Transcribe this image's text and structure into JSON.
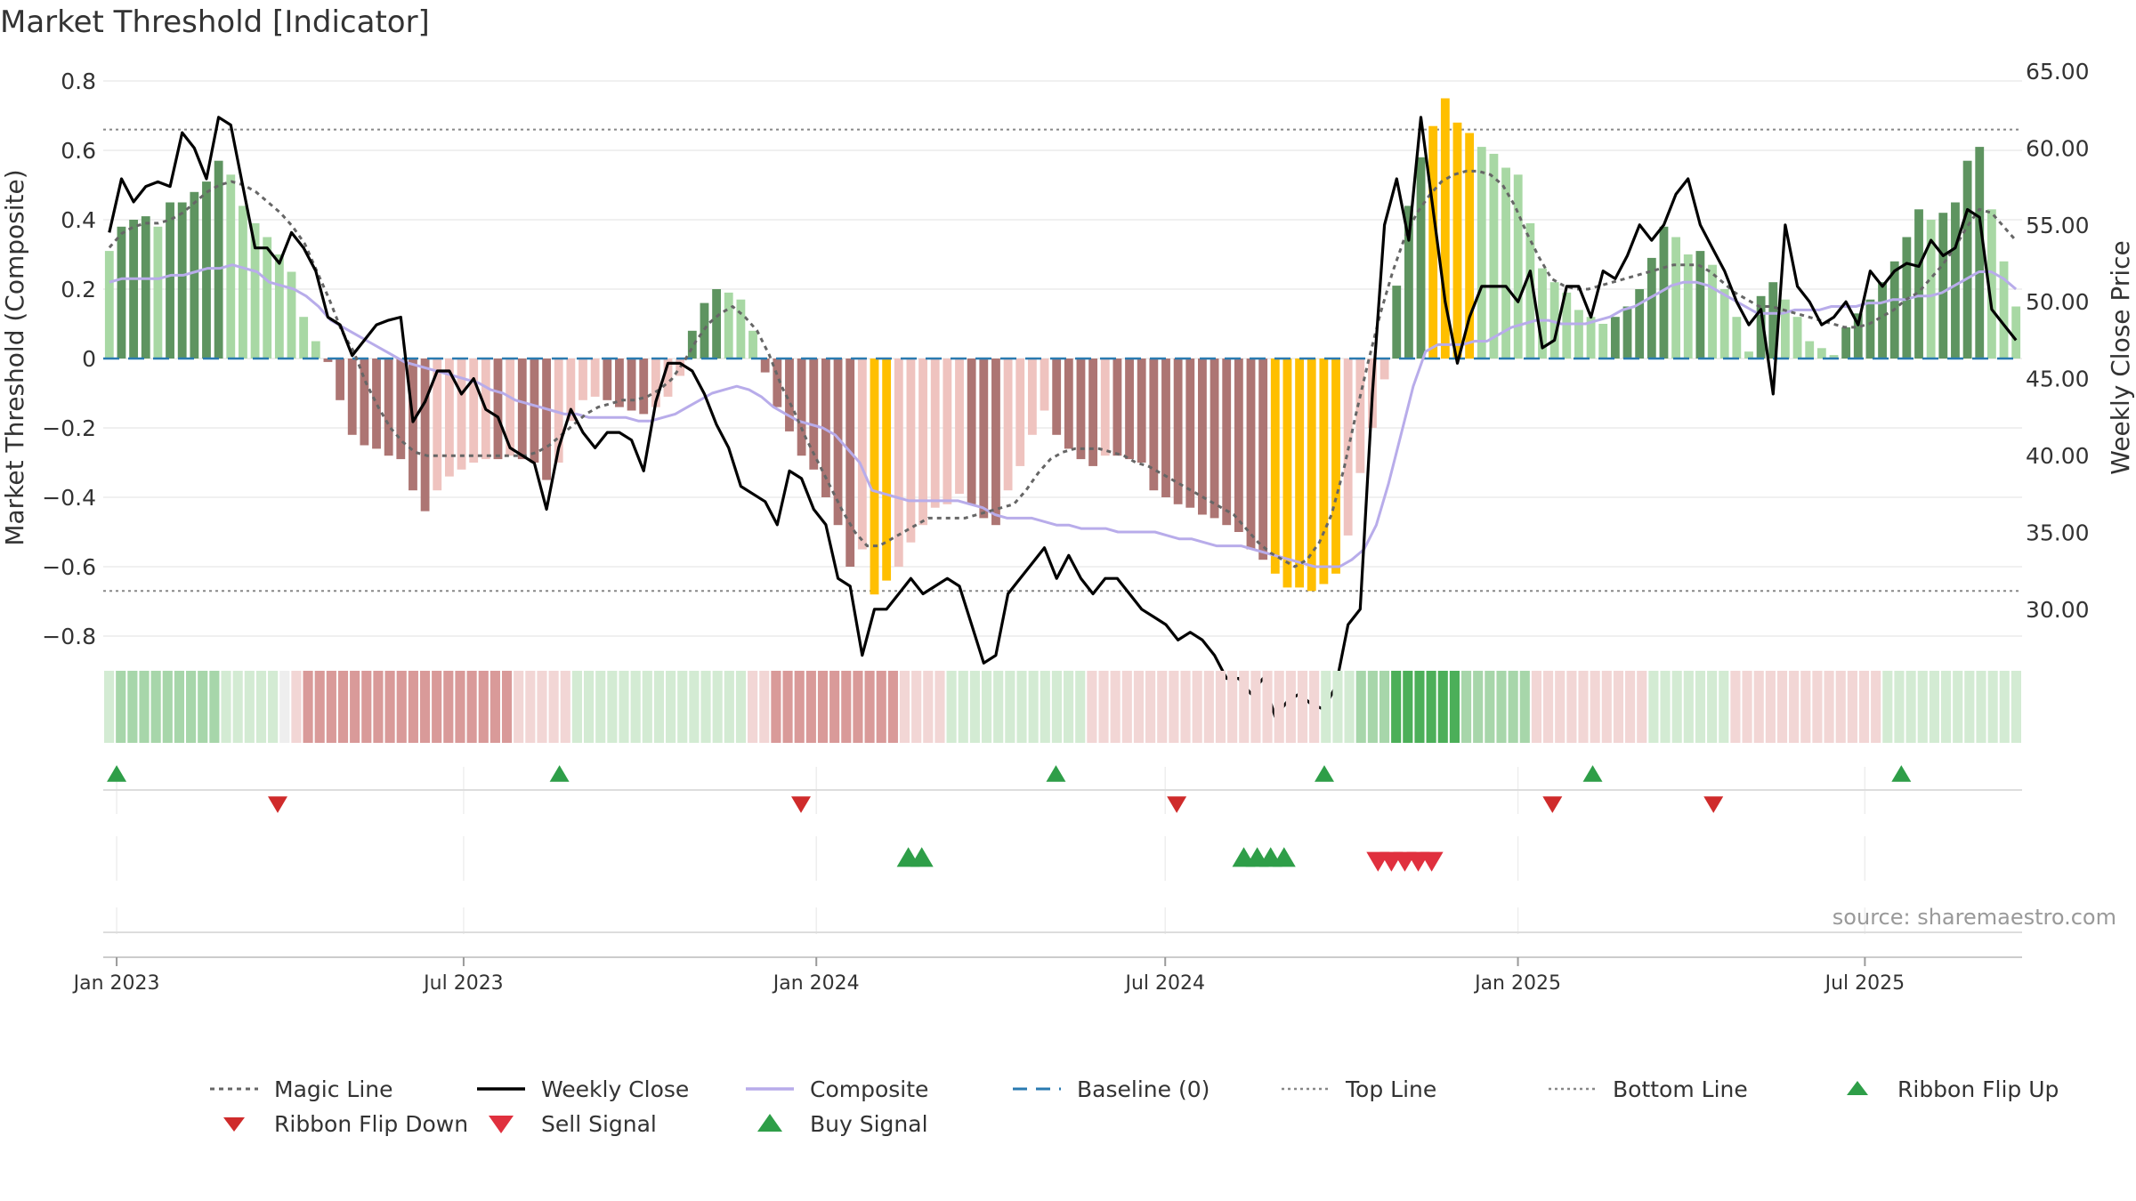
{
  "page": {
    "title": "Market Threshold [Indicator]",
    "source": "source: sharemaestro.com"
  },
  "colors": {
    "bar_green_dark": "#5e9460",
    "bar_green_light": "#a8d8a4",
    "bar_red_dark": "#ad7573",
    "bar_red_light": "#efc3bf",
    "bar_extreme": "#ffbf00",
    "close": "#000000",
    "composite": "#b8acea",
    "magic": "#666666",
    "baseline": "#2a7ab0",
    "threshold": "#888888",
    "flip_up": "#2e9e48",
    "flip_down": "#cf2b2b",
    "sell": "#e0303e",
    "buy": "#2e9e48"
  },
  "chart_data": {
    "type": "bar",
    "y_left_label": "Market Threshold (Composite)",
    "y_right_label": "Weekly Close Price",
    "y_left_ticks": [
      "0.8",
      "0.6",
      "0.4",
      "0.2",
      "0",
      "−0.2",
      "−0.4",
      "−0.6",
      "−0.8"
    ],
    "y_left_values": [
      0.8,
      0.6,
      0.4,
      0.2,
      0,
      -0.2,
      -0.4,
      -0.6,
      -0.8
    ],
    "y_right_ticks": [
      "65.00",
      "60.00",
      "55.00",
      "50.00",
      "45.00",
      "40.00",
      "35.00",
      "30.00"
    ],
    "y_right_values": [
      65,
      60,
      55,
      50,
      45,
      40,
      35,
      30
    ],
    "ylim_left": [
      -0.8,
      0.8
    ],
    "ylim_right": [
      30,
      65
    ],
    "x_ticks": [
      "Jan 2023",
      "Jul 2023",
      "Jan 2024",
      "Jul 2024",
      "Jan 2025",
      "Jul 2025"
    ],
    "x_tick_dates": [
      "2023-01-01",
      "2023-07-01",
      "2024-01-01",
      "2024-07-01",
      "2025-01-01",
      "2025-07-01"
    ],
    "x_start": "2022-12-25",
    "x_end": "2025-09-21",
    "top_line": 0.66,
    "bottom_line": -0.67,
    "baseline": 0,
    "weeks": 143,
    "composite_bars": [
      0.31,
      0.38,
      0.4,
      0.41,
      0.38,
      0.45,
      0.45,
      0.48,
      0.51,
      0.57,
      0.53,
      0.44,
      0.39,
      0.35,
      0.3,
      0.25,
      0.12,
      0.05,
      -0.01,
      -0.12,
      -0.22,
      -0.25,
      -0.26,
      -0.28,
      -0.29,
      -0.38,
      -0.44,
      -0.38,
      -0.34,
      -0.32,
      -0.3,
      -0.29,
      -0.29,
      -0.28,
      -0.29,
      -0.3,
      -0.35,
      -0.3,
      -0.18,
      -0.12,
      -0.11,
      -0.12,
      -0.14,
      -0.15,
      -0.16,
      -0.14,
      -0.11,
      -0.05,
      0.08,
      0.16,
      0.2,
      0.19,
      0.17,
      0.08,
      -0.04,
      -0.14,
      -0.21,
      -0.28,
      -0.32,
      -0.4,
      -0.48,
      -0.6,
      -0.55,
      -0.68,
      -0.64,
      -0.6,
      -0.53,
      -0.48,
      -0.43,
      -0.42,
      -0.39,
      -0.42,
      -0.46,
      -0.48,
      -0.38,
      -0.31,
      -0.22,
      -0.15,
      -0.22,
      -0.26,
      -0.29,
      -0.31,
      -0.28,
      -0.28,
      -0.29,
      -0.3,
      -0.38,
      -0.4,
      -0.42,
      -0.43,
      -0.45,
      -0.46,
      -0.48,
      -0.5,
      -0.55,
      -0.58,
      -0.62,
      -0.66,
      -0.66,
      -0.67,
      -0.65,
      -0.62,
      -0.51,
      -0.33,
      -0.2,
      -0.06,
      0.21,
      0.44,
      0.58,
      0.67,
      0.75,
      0.68,
      0.65,
      0.61,
      0.59,
      0.55,
      0.53,
      0.39,
      0.26,
      0.22,
      0.19,
      0.14,
      0.12,
      0.1,
      0.12,
      0.15,
      0.2,
      0.29,
      0.38,
      0.35,
      0.3,
      0.31,
      0.27,
      0.2,
      0.12,
      0.02,
      0.18,
      0.22,
      0.17,
      0.12,
      0.05,
      0.03,
      0.01
    ],
    "composite_bars_tail": [
      0.09,
      0.13,
      0.17,
      0.22,
      0.28,
      0.35,
      0.43,
      0.4,
      0.42,
      0.45,
      0.57,
      0.61,
      0.43,
      0.28,
      0.15
    ],
    "weekly_close": [
      54.5,
      58,
      56.5,
      57.5,
      57.8,
      57.5,
      61,
      60,
      58,
      62,
      61.5,
      57.5,
      53.5,
      53.5,
      52.5,
      54.5,
      53.5,
      52,
      49,
      48.5,
      46.5,
      47.5,
      48.5,
      48.8,
      49,
      42.2,
      43.5,
      45.5,
      45.5,
      44,
      45,
      43,
      42.5,
      40.5,
      40,
      39.5,
      36.5,
      40.5,
      43,
      41.5,
      40.5,
      41.5,
      41.5,
      41,
      39,
      43.5,
      46,
      46,
      45.5,
      44,
      42,
      40.5,
      38,
      37.5,
      37,
      35.5,
      39,
      38.5,
      36.5,
      35.5,
      32,
      31.5,
      27,
      30,
      30,
      31,
      32,
      31,
      31.5,
      32,
      31.5,
      29,
      26.5,
      27,
      31,
      32,
      33,
      34,
      32,
      33.5,
      32,
      31,
      32,
      32,
      31,
      30,
      29.5,
      29,
      28,
      28.5,
      28,
      27,
      25.5,
      25.5,
      24.5,
      25.5,
      23,
      24,
      24.5,
      23.8,
      23.5,
      25,
      29,
      30,
      44,
      55,
      58,
      54,
      62,
      56,
      50,
      46,
      49,
      51,
      51,
      51,
      50,
      52,
      47,
      47.5,
      51,
      51,
      49,
      52,
      51.5,
      53,
      55,
      54,
      55,
      57,
      58,
      55,
      53.5,
      52,
      50,
      48.5,
      49.5,
      44,
      55,
      51,
      50,
      48.5,
      49,
      50,
      48.5,
      52,
      51,
      52,
      52.5,
      52.3,
      54,
      53,
      53.5,
      56,
      55.5,
      49.5,
      48.5,
      47.5
    ],
    "composite_line": [
      0.22,
      0.23,
      0.23,
      0.23,
      0.23,
      0.24,
      0.24,
      0.25,
      0.26,
      0.26,
      0.27,
      0.26,
      0.25,
      0.22,
      0.21,
      0.2,
      0.18,
      0.15,
      0.11,
      0.09,
      0.07,
      0.05,
      0.03,
      0.01,
      -0.01,
      -0.02,
      -0.03,
      -0.04,
      -0.05,
      -0.06,
      -0.07,
      -0.09,
      -0.1,
      -0.12,
      -0.13,
      -0.14,
      -0.15,
      -0.16,
      -0.16,
      -0.17,
      -0.17,
      -0.17,
      -0.17,
      -0.18,
      -0.18,
      -0.17,
      -0.16,
      -0.14,
      -0.12,
      -0.1,
      -0.09,
      -0.08,
      -0.09,
      -0.11,
      -0.14,
      -0.16,
      -0.18,
      -0.19,
      -0.2,
      -0.22,
      -0.26,
      -0.3,
      -0.38,
      -0.39,
      -0.4,
      -0.41,
      -0.41,
      -0.41,
      -0.41,
      -0.41,
      -0.42,
      -0.43,
      -0.45,
      -0.46,
      -0.46,
      -0.46,
      -0.47,
      -0.48,
      -0.48,
      -0.49,
      -0.49,
      -0.49,
      -0.5,
      -0.5,
      -0.5,
      -0.5,
      -0.51,
      -0.52,
      -0.52,
      -0.53,
      -0.54,
      -0.54,
      -0.54,
      -0.55,
      -0.56,
      -0.57,
      -0.58,
      -0.59,
      -0.6,
      -0.6,
      -0.6,
      -0.58,
      -0.55,
      -0.48,
      -0.36,
      -0.22,
      -0.08,
      0.02,
      0.04,
      0.04,
      0.04,
      0.05,
      0.05,
      0.07,
      0.09,
      0.1,
      0.11,
      0.11,
      0.1,
      0.1,
      0.1,
      0.11,
      0.12,
      0.14,
      0.15,
      0.17,
      0.19,
      0.21,
      0.22,
      0.22,
      0.21,
      0.19,
      0.17,
      0.15,
      0.13,
      0.13,
      0.13,
      0.14,
      0.14,
      0.14,
      0.15,
      0.15,
      0.15,
      0.16,
      0.16,
      0.17,
      0.17,
      0.18,
      0.18,
      0.19,
      0.21,
      0.23,
      0.25,
      0.25,
      0.23,
      0.2
    ],
    "magic_line": [
      0.32,
      0.36,
      0.38,
      0.39,
      0.39,
      0.4,
      0.42,
      0.45,
      0.48,
      0.5,
      0.51,
      0.5,
      0.48,
      0.45,
      0.42,
      0.38,
      0.33,
      0.25,
      0.17,
      0.08,
      0.02,
      -0.07,
      -0.14,
      -0.2,
      -0.24,
      -0.27,
      -0.28,
      -0.28,
      -0.28,
      -0.28,
      -0.28,
      -0.28,
      -0.28,
      -0.28,
      -0.28,
      -0.27,
      -0.25,
      -0.22,
      -0.19,
      -0.16,
      -0.14,
      -0.13,
      -0.12,
      -0.12,
      -0.11,
      -0.09,
      -0.06,
      -0.01,
      0.05,
      0.1,
      0.13,
      0.15,
      0.12,
      0.08,
      0.01,
      -0.08,
      -0.15,
      -0.23,
      -0.3,
      -0.37,
      -0.44,
      -0.5,
      -0.54,
      -0.54,
      -0.52,
      -0.5,
      -0.48,
      -0.46,
      -0.46,
      -0.46,
      -0.46,
      -0.45,
      -0.44,
      -0.43,
      -0.42,
      -0.38,
      -0.33,
      -0.29,
      -0.27,
      -0.26,
      -0.26,
      -0.26,
      -0.27,
      -0.28,
      -0.3,
      -0.31,
      -0.33,
      -0.35,
      -0.37,
      -0.39,
      -0.41,
      -0.43,
      -0.45,
      -0.49,
      -0.53,
      -0.56,
      -0.58,
      -0.6,
      -0.58,
      -0.53,
      -0.45,
      -0.32,
      -0.16,
      -0.01,
      0.13,
      0.25,
      0.35,
      0.42,
      0.47,
      0.51,
      0.53,
      0.54,
      0.54,
      0.53,
      0.5,
      0.44,
      0.36,
      0.29,
      0.23,
      0.21,
      0.2,
      0.2,
      0.21,
      0.22,
      0.23,
      0.24,
      0.25,
      0.26,
      0.27,
      0.27,
      0.27,
      0.25,
      0.22,
      0.19,
      0.17,
      0.15,
      0.15,
      0.14,
      0.13,
      0.12,
      0.11,
      0.1,
      0.09,
      0.09,
      0.1,
      0.12,
      0.14,
      0.17,
      0.19,
      0.23,
      0.27,
      0.32,
      0.38,
      0.43,
      0.42,
      0.38,
      0.34
    ],
    "ribbon_intensity": [
      1,
      2,
      2,
      2,
      2,
      2,
      2,
      2,
      2,
      2,
      1,
      1,
      1,
      1,
      1,
      0,
      -1,
      -2,
      -2,
      -2,
      -2,
      -2,
      -2,
      -2,
      -2,
      -2,
      -2,
      -2,
      -2,
      -2,
      -2,
      -2,
      -2,
      -2,
      -2,
      -1,
      -1,
      -1,
      -1,
      -1,
      1,
      1,
      1,
      1,
      1,
      1,
      1,
      1,
      1,
      1,
      1,
      1,
      1,
      1,
      1,
      -1,
      -1,
      -2,
      -2,
      -2,
      -2,
      -2,
      -2,
      -2,
      -2,
      -2,
      -2,
      -2,
      -1,
      -1,
      -1,
      -1,
      1,
      1,
      1,
      1,
      1,
      1,
      1,
      1,
      1,
      1,
      1,
      1,
      -1,
      -1,
      -1,
      -1,
      -1,
      -1,
      -1,
      -1,
      -1,
      -1,
      -1,
      -1,
      -1,
      -1,
      -1,
      -1,
      -1,
      -1,
      -1,
      -1,
      1,
      1,
      1,
      2,
      2,
      2,
      3,
      3,
      3,
      3,
      3,
      3,
      2,
      2,
      2,
      2,
      2,
      2,
      -1,
      -1,
      -1,
      -1,
      -1,
      -1,
      -1,
      -1,
      -1,
      -1,
      1,
      1,
      1,
      1,
      1,
      1,
      1,
      -1,
      -1,
      -1,
      -1,
      -1,
      -1,
      -1,
      -1,
      -1,
      -1,
      -1,
      -1,
      -1,
      1,
      1,
      1,
      1,
      1,
      1,
      1,
      1,
      1,
      1,
      1,
      1
    ],
    "ribbon_flip_up_dates": [
      "2023-01-01",
      "2023-08-20",
      "2024-05-05",
      "2024-09-22",
      "2025-02-09",
      "2025-07-20"
    ],
    "ribbon_flip_down_dates": [
      "2023-03-26",
      "2023-12-24",
      "2024-07-07",
      "2025-01-19",
      "2025-04-13"
    ],
    "buy_signal_dates": [
      "2024-02-18",
      "2024-02-25",
      "2024-08-11",
      "2024-08-18",
      "2024-08-25",
      "2024-09-01"
    ],
    "sell_signal_dates": [
      "2024-10-20",
      "2024-10-27",
      "2024-11-03",
      "2024-11-10",
      "2024-11-17"
    ],
    "legend_position": "bottom",
    "legend": [
      {
        "label": "Magic Line",
        "type": "dotted-line"
      },
      {
        "label": "Weekly Close",
        "type": "solid-line"
      },
      {
        "label": "Composite",
        "type": "lavender-line"
      },
      {
        "label": "Baseline (0)",
        "type": "dashed-line"
      },
      {
        "label": "Top Line",
        "type": "fine-dotted-line"
      },
      {
        "label": "Bottom Line",
        "type": "fine-dotted-line"
      },
      {
        "label": "Ribbon Flip Up",
        "type": "up-triangle-green"
      },
      {
        "label": "Ribbon Flip Down",
        "type": "down-triangle-red-dark"
      },
      {
        "label": "Sell Signal",
        "type": "down-triangle-red"
      },
      {
        "label": "Buy Signal",
        "type": "up-triangle-green-large"
      }
    ]
  }
}
